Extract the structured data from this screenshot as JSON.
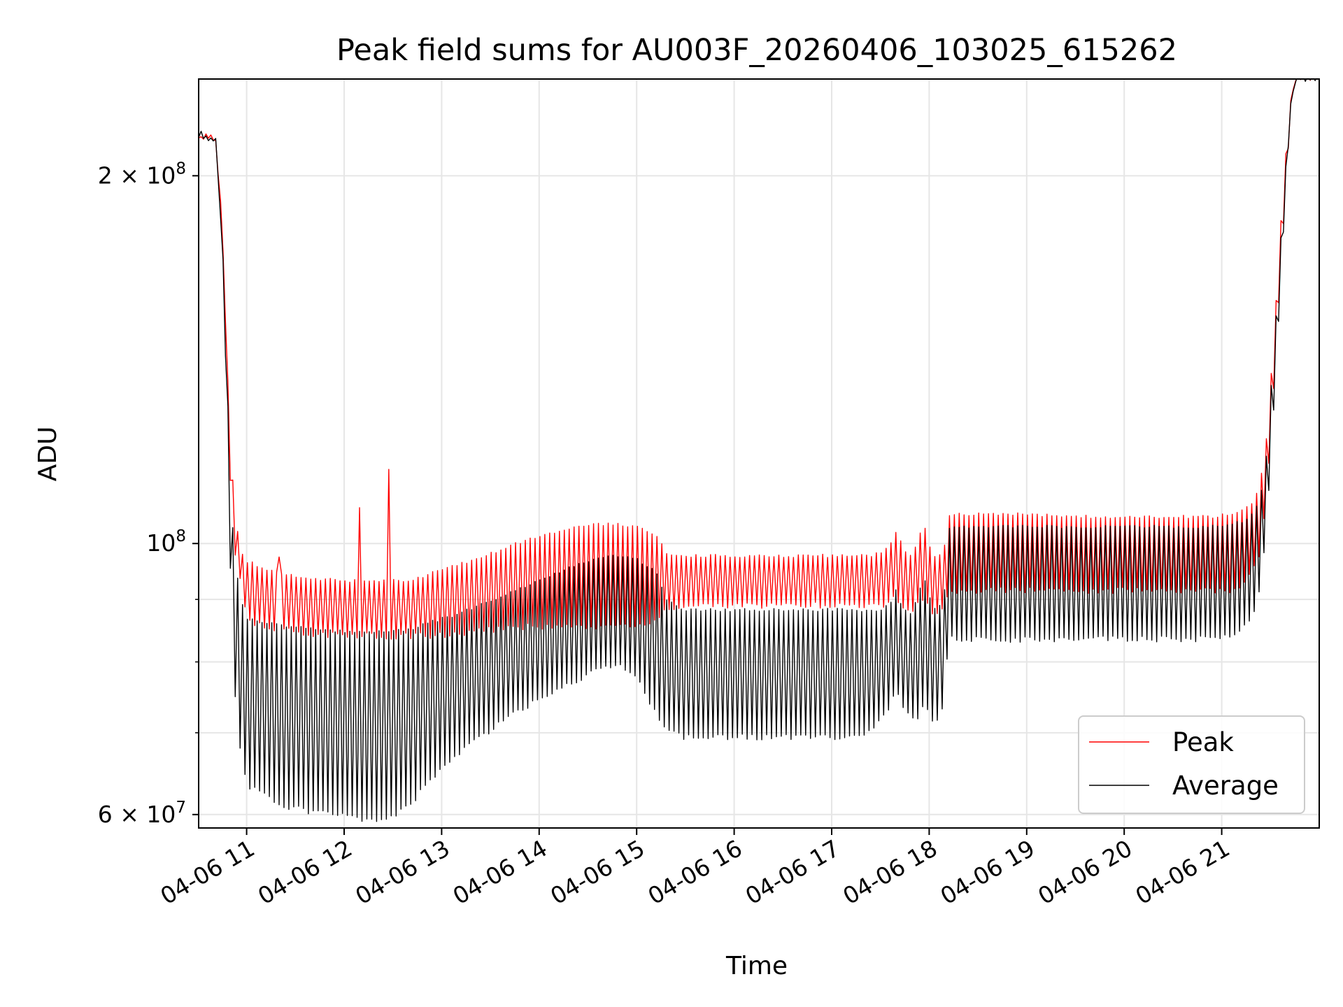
{
  "chart_data": {
    "type": "line",
    "title": "Peak field sums for AU003F_20260406_103025_615262",
    "xlabel": "Time",
    "ylabel": "ADU",
    "yscale": "log",
    "ylim": [
      58500000,
      240000000
    ],
    "xlim_hours": [
      10.508,
      22.0
    ],
    "grid": true,
    "x_ticks": [
      {
        "hour": 11,
        "label": "04-06 11"
      },
      {
        "hour": 12,
        "label": "04-06 12"
      },
      {
        "hour": 13,
        "label": "04-06 13"
      },
      {
        "hour": 14,
        "label": "04-06 14"
      },
      {
        "hour": 15,
        "label": "04-06 15"
      },
      {
        "hour": 16,
        "label": "04-06 16"
      },
      {
        "hour": 17,
        "label": "04-06 17"
      },
      {
        "hour": 18,
        "label": "04-06 18"
      },
      {
        "hour": 19,
        "label": "04-06 19"
      },
      {
        "hour": 20,
        "label": "04-06 20"
      },
      {
        "hour": 21,
        "label": "04-06 21"
      }
    ],
    "y_major_ticks": [
      {
        "value": 60000000,
        "base": "6 × 10",
        "exp": "7"
      },
      {
        "value": 100000000,
        "base": "10",
        "exp": "8"
      },
      {
        "value": 200000000,
        "base": "2 × 10",
        "exp": "8"
      }
    ],
    "y_minor_ticks": [
      70000000,
      80000000,
      90000000
    ],
    "legend": {
      "position": "lower right",
      "entries": [
        "Peak",
        "Average"
      ]
    },
    "series": [
      {
        "name": "Peak",
        "color": "#ff0000",
        "oscillating": true,
        "period_hours": 0.05,
        "note": "upper envelope (high) and lower envelope (low) of the rapidly oscillating signal",
        "envelope_hours": [
          10.508,
          10.6,
          10.68,
          10.75,
          10.8,
          10.85,
          10.92,
          11.0,
          11.3,
          11.6,
          12.0,
          12.3,
          12.5,
          12.7,
          12.9,
          13.2,
          13.5,
          13.8,
          14.0,
          14.2,
          14.4,
          14.6,
          14.8,
          15.0,
          15.2,
          15.3,
          15.5,
          15.8,
          16.0,
          16.5,
          17.0,
          17.4,
          17.5,
          17.6,
          17.65,
          17.7,
          17.75,
          17.8,
          17.85,
          17.9,
          17.95,
          18.0,
          18.05,
          18.1,
          18.15,
          18.2,
          18.3,
          18.5,
          19.0,
          19.5,
          20.0,
          20.5,
          20.9,
          21.1,
          21.2,
          21.3,
          21.38,
          21.45,
          21.5,
          21.55,
          21.6,
          21.65,
          21.7,
          21.75,
          21.8,
          22.0
        ],
        "high": [
          215000000,
          215000000,
          215000000,
          180000000,
          140000000,
          115000000,
          100000000,
          97000000,
          95000000,
          94000000,
          93500000,
          93500000,
          93500000,
          93500000,
          95000000,
          96500000,
          98500000,
          100500000,
          101500000,
          102500000,
          103500000,
          104000000,
          104000000,
          103500000,
          102000000,
          98500000,
          98000000,
          98000000,
          98000000,
          98000000,
          98000000,
          98000000,
          98500000,
          100000000,
          103000000,
          101000000,
          99000000,
          98000000,
          99000000,
          102000000,
          104000000,
          100000000,
          98000000,
          98000000,
          99000000,
          106000000,
          106000000,
          106000000,
          106000000,
          105500000,
          105500000,
          105500000,
          105500000,
          106000000,
          107000000,
          108000000,
          111000000,
          120000000,
          135000000,
          155000000,
          180000000,
          205000000,
          230000000,
          240000000,
          240000000,
          240000000
        ],
        "low": [
          215000000,
          215000000,
          215000000,
          180000000,
          135000000,
          100000000,
          94000000,
          86000000,
          84500000,
          84000000,
          83500000,
          83500000,
          83500000,
          83500000,
          83500000,
          84000000,
          84500000,
          85000000,
          85000000,
          85000000,
          85000000,
          85000000,
          85000000,
          85000000,
          86000000,
          87500000,
          88500000,
          88500000,
          88500000,
          88500000,
          88500000,
          88500000,
          88500000,
          89000000,
          90000000,
          89000000,
          88000000,
          87500000,
          88000000,
          89000000,
          90000000,
          88000000,
          87000000,
          87000000,
          87500000,
          91000000,
          91000000,
          91000000,
          91000000,
          91000000,
          91000000,
          91000000,
          91000000,
          91000000,
          92000000,
          93500000,
          97000000,
          107000000,
          120000000,
          140000000,
          165000000,
          190000000,
          220000000,
          240000000,
          240000000,
          240000000
        ],
        "spikes": [
          {
            "hour": 11.33,
            "value": 97500000
          },
          {
            "hour": 12.16,
            "value": 107000000
          },
          {
            "hour": 12.45,
            "value": 115000000
          }
        ]
      },
      {
        "name": "Average",
        "color": "#000000",
        "oscillating": true,
        "period_hours": 0.05,
        "note": "upper envelope (high) and lower envelope (low) of the rapidly oscillating signal",
        "envelope_hours": [
          10.508,
          10.6,
          10.68,
          10.75,
          10.8,
          10.85,
          10.92,
          11.0,
          11.3,
          11.6,
          12.0,
          12.3,
          12.5,
          12.7,
          12.9,
          13.2,
          13.5,
          13.8,
          14.0,
          14.2,
          14.4,
          14.6,
          14.8,
          15.0,
          15.2,
          15.3,
          15.5,
          15.8,
          16.0,
          16.5,
          17.0,
          17.4,
          17.5,
          17.6,
          17.65,
          17.7,
          17.75,
          17.8,
          17.85,
          17.9,
          17.95,
          18.0,
          18.05,
          18.1,
          18.15,
          18.2,
          18.3,
          18.5,
          19.0,
          19.5,
          20.0,
          20.5,
          20.9,
          21.1,
          21.2,
          21.3,
          21.38,
          21.45,
          21.5,
          21.55,
          21.6,
          21.65,
          21.7,
          21.75,
          21.8,
          22.0
        ],
        "high": [
          215000000,
          215000000,
          214000000,
          178000000,
          135000000,
          105000000,
          92000000,
          87000000,
          86000000,
          85500000,
          85000000,
          85000000,
          85000000,
          85500000,
          86500000,
          88000000,
          90000000,
          92000000,
          93500000,
          95000000,
          96500000,
          97500000,
          98000000,
          97500000,
          95000000,
          90000000,
          88500000,
          88500000,
          88500000,
          88500000,
          88500000,
          88500000,
          88500000,
          89500000,
          92000000,
          90000000,
          88500000,
          88000000,
          89000000,
          92000000,
          94000000,
          91000000,
          89000000,
          89000000,
          90000000,
          103500000,
          103500000,
          103500000,
          103500000,
          103500000,
          103500000,
          103500000,
          103500000,
          104000000,
          104500000,
          105500000,
          108000000,
          116000000,
          132000000,
          150000000,
          175000000,
          200000000,
          228000000,
          240000000,
          240000000,
          240000000
        ],
        "low": [
          215000000,
          215000000,
          214000000,
          175000000,
          125000000,
          80000000,
          68000000,
          63000000,
          61000000,
          60000000,
          59500000,
          59000000,
          59500000,
          61000000,
          64000000,
          67000000,
          70000000,
          72500000,
          74000000,
          75500000,
          77000000,
          78500000,
          79000000,
          77500000,
          72000000,
          70000000,
          69000000,
          69000000,
          69000000,
          69000000,
          69000000,
          69500000,
          71000000,
          73000000,
          75000000,
          74000000,
          73000000,
          72000000,
          71000000,
          72000000,
          73000000,
          72000000,
          71000000,
          71500000,
          73000000,
          83000000,
          83000000,
          83000000,
          83000000,
          83000000,
          83000000,
          83000000,
          83000000,
          83500000,
          84500000,
          86500000,
          90000000,
          100000000,
          115000000,
          135000000,
          160000000,
          190000000,
          220000000,
          240000000,
          240000000,
          240000000
        ],
        "spikes": []
      }
    ]
  }
}
